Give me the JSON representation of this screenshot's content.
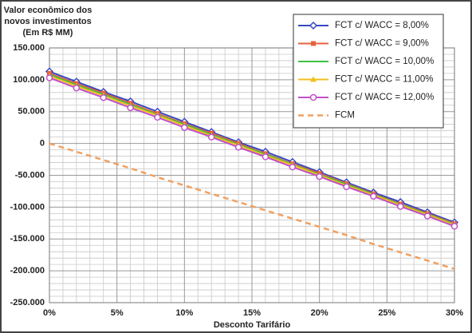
{
  "chart_data": {
    "type": "line",
    "title": [
      "Valor econômico  dos",
      "novos investimentos",
      "(Em R$ MM)"
    ],
    "x_label": "Desconto Tarifário",
    "x": [
      0,
      2,
      4,
      6,
      8,
      10,
      12,
      14,
      16,
      18,
      20,
      22,
      24,
      26,
      28,
      30
    ],
    "xlim": [
      0,
      30
    ],
    "xticks": [
      {
        "value": 0,
        "label": "0%"
      },
      {
        "value": 5,
        "label": "5%"
      },
      {
        "value": 10,
        "label": "10%"
      },
      {
        "value": 15,
        "label": "15%"
      },
      {
        "value": 20,
        "label": "20%"
      },
      {
        "value": 25,
        "label": "25%"
      },
      {
        "value": 30,
        "label": "30%"
      }
    ],
    "ylim": [
      -250000,
      150000
    ],
    "yticks": [
      {
        "value": 150000,
        "label": "150.000"
      },
      {
        "value": 100000,
        "label": "100.000"
      },
      {
        "value": 50000,
        "label": "50.000"
      },
      0,
      {
        "value": -50000,
        "label": "-50.000"
      },
      {
        "value": -100000,
        "label": "-100.000"
      },
      {
        "value": -150000,
        "label": "-150.000"
      },
      {
        "value": -200000,
        "label": "-200.000"
      },
      {
        "value": -250000,
        "label": "-250.000"
      }
    ],
    "grid": true,
    "legend": "top-right",
    "series": [
      {
        "name": "FCT c/  WACC = 8,00%",
        "color": "#3848c0",
        "marker": "diamond",
        "values": [
          113000,
          97000,
          81000,
          66000,
          50000,
          34000,
          18000,
          2000,
          -13000,
          -29000,
          -45000,
          -61000,
          -77000,
          -92000,
          -108000,
          -124000
        ]
      },
      {
        "name": "FCT c/  WACC = 9,00%",
        "color": "#e8603c",
        "marker": "square",
        "values": [
          110000,
          94000,
          79000,
          63000,
          47000,
          31000,
          16000,
          0,
          -16000,
          -32000,
          -47000,
          -63000,
          -79000,
          -95000,
          -110000,
          -126000
        ]
      },
      {
        "name": "FCT c/  WACC = 10,00%",
        "color": "#40c040",
        "values": [
          108000,
          92000,
          77000,
          61000,
          45000,
          30000,
          14000,
          -2000,
          -17000,
          -33000,
          -49000,
          -64000,
          -80000,
          -96000,
          -111000,
          -127000
        ]
      },
      {
        "name": "FCT c/  WACC = 11,00%",
        "color": "#f0c020",
        "marker": "triangle",
        "values": [
          106000,
          90000,
          75000,
          59000,
          44000,
          28000,
          12000,
          -3000,
          -19000,
          -34000,
          -50000,
          -66000,
          -81000,
          -97000,
          -112000,
          -128000
        ]
      },
      {
        "name": "FCT c/  WACC = 12,00%",
        "color": "#c050c8",
        "marker": "circle",
        "values": [
          103000,
          87000,
          72000,
          56000,
          41000,
          25000,
          10000,
          -6000,
          -21000,
          -37000,
          -52000,
          -68000,
          -83000,
          -99000,
          -114000,
          -130000
        ]
      },
      {
        "name": "FCM",
        "color": "#f0a060",
        "dashed": true,
        "values": [
          0,
          -13000,
          -26000,
          -39000,
          -53000,
          -66000,
          -79000,
          -92000,
          -105000,
          -118000,
          -131000,
          -144000,
          -158000,
          -171000,
          -184000,
          -197000
        ]
      }
    ]
  }
}
